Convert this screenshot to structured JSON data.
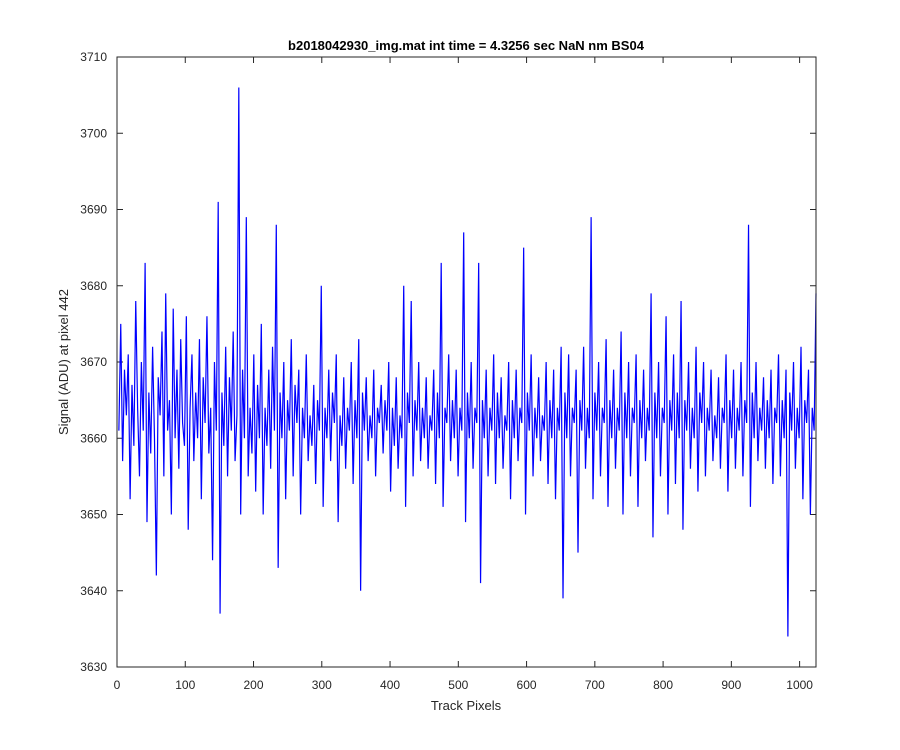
{
  "chart_data": {
    "type": "line",
    "title": "b2018042930_img.mat int time = 4.3256 sec  NaN nm BS04",
    "xlabel": "Track Pixels",
    "ylabel": "Signal (ADU) at pixel 442",
    "xlim": [
      0,
      1024
    ],
    "ylim": [
      3630,
      3710
    ],
    "xticks": [
      0,
      100,
      200,
      300,
      400,
      500,
      600,
      700,
      800,
      900,
      1000
    ],
    "yticks": [
      3630,
      3640,
      3650,
      3660,
      3670,
      3680,
      3690,
      3700,
      3710
    ],
    "grid": false,
    "line_color": "#0000ff",
    "series": [
      {
        "values_note_excluded": false,
        "x_start": 1,
        "x_step": 1,
        "values": [
          3661,
          3675,
          3657,
          3669,
          3663,
          3671,
          3652,
          3667,
          3659,
          3678,
          3664,
          3655,
          3670,
          3661,
          3683,
          3649,
          3666,
          3658,
          3672,
          3660,
          3642,
          3668,
          3663,
          3674,
          3655,
          3679,
          3661,
          3665,
          3650,
          3677,
          3660,
          3669,
          3656,
          3673,
          3662,
          3659,
          3676,
          3648,
          3664,
          3671,
          3657,
          3666,
          3660,
          3673,
          3652,
          3668,
          3662,
          3676,
          3658,
          3664,
          3644,
          3670,
          3661,
          3691,
          3637,
          3666,
          3659,
          3672,
          3655,
          3668,
          3661,
          3674,
          3657,
          3663,
          3706,
          3650,
          3669,
          3660,
          3689,
          3655,
          3664,
          3658,
          3671,
          3653,
          3667,
          3660,
          3675,
          3650,
          3664,
          3659,
          3669,
          3656,
          3672,
          3661,
          3688,
          3643,
          3666,
          3660,
          3670,
          3652,
          3665,
          3661,
          3673,
          3655,
          3667,
          3662,
          3669,
          3650,
          3664,
          3660,
          3671,
          3657,
          3663,
          3659,
          3667,
          3654,
          3665,
          3661,
          3680,
          3651,
          3664,
          3660,
          3669,
          3657,
          3666,
          3662,
          3671,
          3649,
          3663,
          3659,
          3668,
          3656,
          3664,
          3661,
          3670,
          3654,
          3665,
          3660,
          3673,
          3640,
          3666,
          3661,
          3668,
          3657,
          3663,
          3660,
          3669,
          3655,
          3664,
          3662,
          3667,
          3658,
          3665,
          3661,
          3670,
          3653,
          3664,
          3659,
          3668,
          3656,
          3663,
          3660,
          3680,
          3651,
          3666,
          3662,
          3678,
          3655,
          3665,
          3661,
          3670,
          3657,
          3664,
          3660,
          3668,
          3656,
          3663,
          3661,
          3669,
          3654,
          3666,
          3660,
          3683,
          3651,
          3664,
          3662,
          3671,
          3657,
          3665,
          3660,
          3669,
          3655,
          3664,
          3661,
          3687,
          3649,
          3666,
          3660,
          3670,
          3656,
          3664,
          3662,
          3683,
          3641,
          3665,
          3660,
          3669,
          3655,
          3664,
          3661,
          3671,
          3654,
          3666,
          3660,
          3668,
          3656,
          3663,
          3661,
          3670,
          3652,
          3665,
          3660,
          3669,
          3657,
          3664,
          3662,
          3685,
          3650,
          3666,
          3661,
          3671,
          3655,
          3664,
          3660,
          3668,
          3657,
          3663,
          3661,
          3670,
          3654,
          3665,
          3660,
          3669,
          3652,
          3664,
          3661,
          3672,
          3639,
          3666,
          3660,
          3671,
          3655,
          3664,
          3662,
          3669,
          3645,
          3665,
          3661,
          3672,
          3656,
          3664,
          3660,
          3689,
          3652,
          3666,
          3661,
          3670,
          3655,
          3664,
          3662,
          3673,
          3651,
          3665,
          3660,
          3669,
          3656,
          3664,
          3661,
          3674,
          3650,
          3666,
          3660,
          3670,
          3655,
          3664,
          3662,
          3671,
          3651,
          3665,
          3660,
          3669,
          3657,
          3664,
          3661,
          3679,
          3647,
          3666,
          3660,
          3670,
          3655,
          3664,
          3662,
          3676,
          3650,
          3665,
          3661,
          3671,
          3654,
          3666,
          3660,
          3678,
          3648,
          3665,
          3661,
          3670,
          3656,
          3664,
          3660,
          3672,
          3653,
          3666,
          3662,
          3670,
          3655,
          3664,
          3661,
          3669,
          3657,
          3663,
          3660,
          3668,
          3656,
          3664,
          3662,
          3671,
          3653,
          3665,
          3660,
          3669,
          3656,
          3664,
          3661,
          3670,
          3655,
          3665,
          3662,
          3688,
          3651,
          3666,
          3660,
          3670,
          3657,
          3664,
          3661,
          3668,
          3656,
          3665,
          3660,
          3669,
          3654,
          3664,
          3662,
          3671,
          3655,
          3665,
          3660,
          3669,
          3634,
          3666,
          3661,
          3670,
          3656,
          3664,
          3660,
          3672,
          3652,
          3665,
          3662,
          3669,
          3650,
          3664,
          3661,
          3679
        ]
      }
    ]
  }
}
